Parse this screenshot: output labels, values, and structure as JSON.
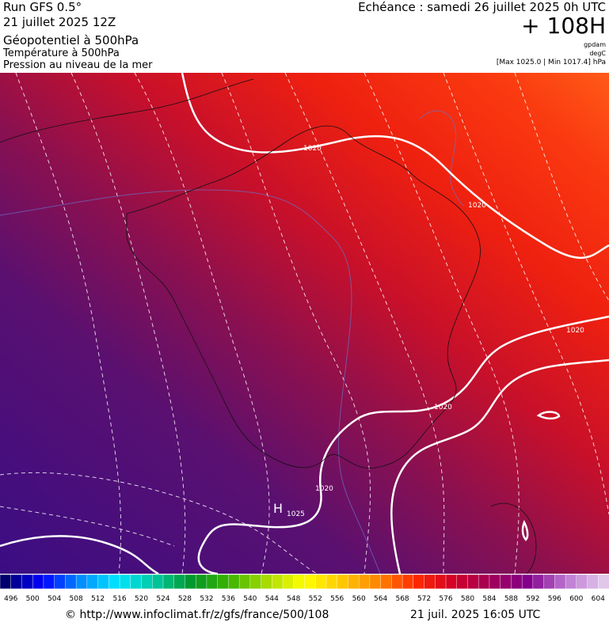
{
  "header": {
    "left": [
      "Run GFS 0.5°",
      "21 juillet 2025 12Z",
      "Géopotentiel à 500hPa",
      "Température à 500hPa",
      "Pression au niveau de la mer"
    ],
    "right": {
      "echeance": "Echéance : samedi 26 juillet 2025 0h UTC",
      "lead": "+ 108H",
      "units": [
        "gpdam",
        "degC"
      ],
      "range": "[Max 1025.0 | Min 1017.4] hPa"
    }
  },
  "map": {
    "labels": [
      "1020",
      "1020",
      "1020",
      "1020",
      "1020",
      "1025",
      "H"
    ]
  },
  "colorbar": {
    "labels": [
      496,
      500,
      504,
      508,
      512,
      516,
      520,
      524,
      528,
      532,
      536,
      540,
      544,
      548,
      552,
      556,
      560,
      564,
      568,
      572,
      576,
      580,
      584,
      588,
      592,
      596,
      600,
      604
    ]
  },
  "footer": {
    "url": "© http://www.infoclimat.fr/z/gfs/france/500/108",
    "date": "21 juil. 2025 16:05 UTC"
  }
}
